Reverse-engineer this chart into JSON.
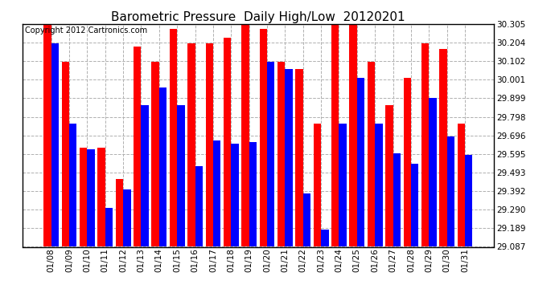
{
  "title": "Barometric Pressure  Daily High/Low  20120201",
  "copyright": "Copyright 2012 Cartronics.com",
  "dates": [
    "01/08",
    "01/09",
    "01/10",
    "01/11",
    "01/12",
    "01/13",
    "01/14",
    "01/15",
    "01/16",
    "01/17",
    "01/18",
    "01/19",
    "01/20",
    "01/21",
    "01/22",
    "01/23",
    "01/24",
    "01/25",
    "01/26",
    "01/27",
    "01/28",
    "01/29",
    "01/30",
    "01/31"
  ],
  "highs": [
    30.3,
    30.1,
    29.63,
    29.63,
    29.46,
    30.18,
    30.1,
    30.28,
    30.2,
    30.2,
    30.23,
    30.3,
    30.28,
    30.1,
    30.06,
    29.76,
    30.3,
    30.32,
    30.1,
    29.86,
    30.01,
    30.2,
    30.17,
    29.76
  ],
  "lows": [
    30.2,
    29.76,
    29.62,
    29.3,
    29.4,
    29.86,
    29.96,
    29.86,
    29.53,
    29.67,
    29.65,
    29.66,
    30.1,
    30.06,
    29.38,
    29.18,
    29.76,
    30.01,
    29.76,
    29.6,
    29.54,
    29.9,
    29.69,
    29.59
  ],
  "high_color": "#ff0000",
  "low_color": "#0000ff",
  "bg_color": "#ffffff",
  "grid_color": "#b0b0b0",
  "ylim_min": 29.087,
  "ylim_max": 30.305,
  "yticks": [
    29.087,
    29.189,
    29.29,
    29.392,
    29.493,
    29.595,
    29.696,
    29.798,
    29.899,
    30.001,
    30.102,
    30.204,
    30.305
  ],
  "title_fontsize": 11,
  "copyright_fontsize": 7,
  "bar_width": 0.42
}
